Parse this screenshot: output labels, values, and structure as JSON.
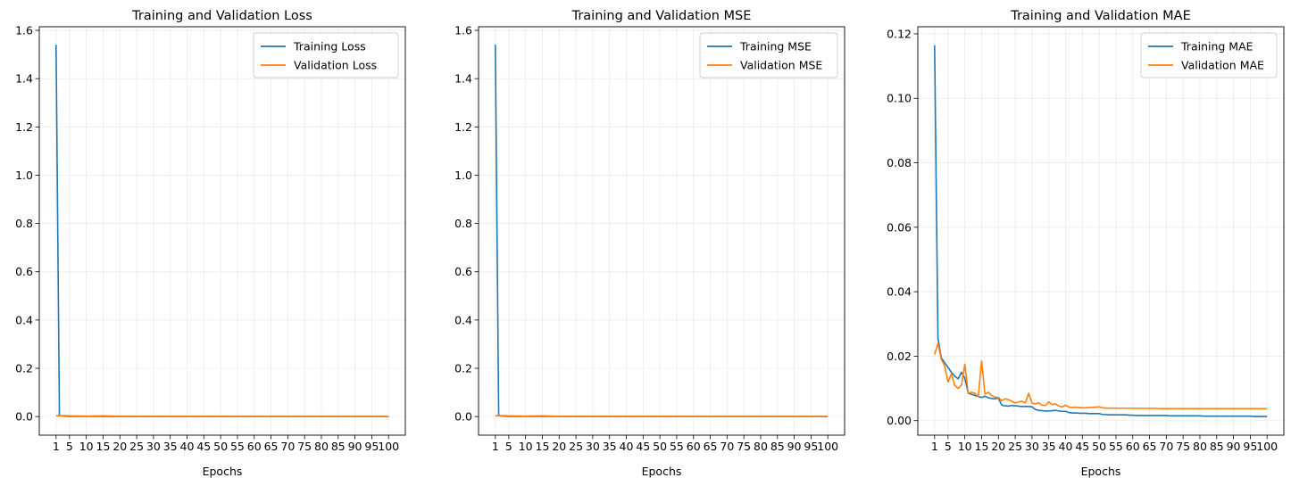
{
  "chart_data": [
    {
      "type": "line",
      "title": "Training and Validation Loss",
      "xlabel": "Epochs",
      "ylabel": "",
      "xlim": [
        -4,
        105
      ],
      "ylim": [
        -0.077,
        1.615
      ],
      "xticks": [
        1,
        5,
        10,
        15,
        20,
        25,
        30,
        35,
        40,
        45,
        50,
        55,
        60,
        65,
        70,
        75,
        80,
        85,
        90,
        95,
        100
      ],
      "xtick_labels": [
        "1",
        "5",
        "10",
        "15",
        "20",
        "25",
        "30",
        "35",
        "40",
        "45",
        "50",
        "55",
        "60",
        "65",
        "70",
        "75",
        "80",
        "85",
        "90",
        "95",
        "100"
      ],
      "yticks": [
        0.0,
        0.2,
        0.4,
        0.6,
        0.8,
        1.0,
        1.2,
        1.4,
        1.6
      ],
      "ytick_labels": [
        "0.0",
        "0.2",
        "0.4",
        "0.6",
        "0.8",
        "1.0",
        "1.2",
        "1.4",
        "1.6"
      ],
      "grid": true,
      "legend_position": "top-right",
      "series": [
        {
          "name": "Training Loss",
          "color": "#1f77b4",
          "x": [
            1,
            2,
            3,
            5,
            10,
            15,
            20,
            30,
            40,
            50,
            60,
            70,
            80,
            90,
            100
          ],
          "y": [
            1.54,
            0.004,
            0.002,
            0.001,
            0.0008,
            0.0006,
            0.0004,
            0.0003,
            0.0002,
            0.0002,
            0.0002,
            0.0002,
            0.0002,
            0.0002,
            0.0002
          ]
        },
        {
          "name": "Validation Loss",
          "color": "#ff7f0e",
          "x": [
            1,
            2,
            5,
            10,
            15,
            20,
            30,
            40,
            50,
            60,
            70,
            80,
            90,
            100
          ],
          "y": [
            0.003,
            0.004,
            0.003,
            0.002,
            0.003,
            0.001,
            0.001,
            0.0008,
            0.0007,
            0.0006,
            0.0006,
            0.0006,
            0.0006,
            0.0006
          ]
        }
      ]
    },
    {
      "type": "line",
      "title": "Training and Validation MSE",
      "xlabel": "Epochs",
      "ylabel": "",
      "xlim": [
        -4,
        105
      ],
      "ylim": [
        -0.077,
        1.615
      ],
      "xticks": [
        1,
        5,
        10,
        15,
        20,
        25,
        30,
        35,
        40,
        45,
        50,
        55,
        60,
        65,
        70,
        75,
        80,
        85,
        90,
        95,
        100
      ],
      "xtick_labels": [
        "1",
        "5",
        "10",
        "15",
        "20",
        "25",
        "30",
        "35",
        "40",
        "45",
        "50",
        "55",
        "60",
        "65",
        "70",
        "75",
        "80",
        "85",
        "90",
        "95",
        "100"
      ],
      "yticks": [
        0.0,
        0.2,
        0.4,
        0.6,
        0.8,
        1.0,
        1.2,
        1.4,
        1.6
      ],
      "ytick_labels": [
        "0.0",
        "0.2",
        "0.4",
        "0.6",
        "0.8",
        "1.0",
        "1.2",
        "1.4",
        "1.6"
      ],
      "grid": true,
      "legend_position": "top-right",
      "series": [
        {
          "name": "Training MSE",
          "color": "#1f77b4",
          "x": [
            1,
            2,
            3,
            5,
            10,
            15,
            20,
            30,
            40,
            50,
            60,
            70,
            80,
            90,
            100
          ],
          "y": [
            1.54,
            0.004,
            0.002,
            0.001,
            0.0008,
            0.0006,
            0.0004,
            0.0003,
            0.0002,
            0.0002,
            0.0002,
            0.0002,
            0.0002,
            0.0002,
            0.0002
          ]
        },
        {
          "name": "Validation MSE",
          "color": "#ff7f0e",
          "x": [
            1,
            2,
            5,
            10,
            15,
            20,
            30,
            40,
            50,
            60,
            70,
            80,
            90,
            100
          ],
          "y": [
            0.003,
            0.004,
            0.003,
            0.002,
            0.003,
            0.001,
            0.001,
            0.0008,
            0.0007,
            0.0006,
            0.0006,
            0.0006,
            0.0006,
            0.0006
          ]
        }
      ]
    },
    {
      "type": "line",
      "title": "Training and Validation MAE",
      "xlabel": "Epochs",
      "ylabel": "",
      "xlim": [
        -4,
        105
      ],
      "ylim": [
        -0.0045,
        0.1222
      ],
      "xticks": [
        1,
        5,
        10,
        15,
        20,
        25,
        30,
        35,
        40,
        45,
        50,
        55,
        60,
        65,
        70,
        75,
        80,
        85,
        90,
        95,
        100
      ],
      "xtick_labels": [
        "1",
        "5",
        "10",
        "15",
        "20",
        "25",
        "30",
        "35",
        "40",
        "45",
        "50",
        "55",
        "60",
        "65",
        "70",
        "75",
        "80",
        "85",
        "90",
        "95",
        "100"
      ],
      "yticks": [
        0.0,
        0.02,
        0.04,
        0.06,
        0.08,
        0.1,
        0.12
      ],
      "ytick_labels": [
        "0.00",
        "0.02",
        "0.04",
        "0.06",
        "0.08",
        "0.10",
        "0.12"
      ],
      "grid": true,
      "legend_position": "top-right",
      "series": [
        {
          "name": "Training MAE",
          "color": "#1f77b4",
          "x": [
            1,
            2,
            3,
            4,
            5,
            6,
            7,
            8,
            9,
            10,
            11,
            12,
            13,
            14,
            15,
            16,
            17,
            18,
            19,
            20,
            21,
            22,
            23,
            24,
            25,
            26,
            27,
            28,
            29,
            30,
            31,
            32,
            33,
            34,
            35,
            36,
            37,
            38,
            39,
            40,
            41,
            42,
            43,
            44,
            45,
            46,
            47,
            48,
            49,
            50,
            51,
            52,
            53,
            54,
            55,
            56,
            57,
            58,
            59,
            60,
            61,
            62,
            63,
            64,
            65,
            66,
            67,
            68,
            69,
            70,
            71,
            72,
            73,
            74,
            75,
            76,
            77,
            78,
            79,
            80,
            81,
            82,
            83,
            84,
            85,
            86,
            87,
            88,
            89,
            90,
            91,
            92,
            93,
            94,
            95,
            96,
            97,
            98,
            99,
            100
          ],
          "y": [
            0.1165,
            0.0255,
            0.0195,
            0.018,
            0.0165,
            0.015,
            0.0138,
            0.013,
            0.015,
            0.0132,
            0.0085,
            0.0082,
            0.0078,
            0.0075,
            0.0072,
            0.0076,
            0.0071,
            0.0069,
            0.0068,
            0.007,
            0.0048,
            0.0046,
            0.0045,
            0.0047,
            0.0046,
            0.0045,
            0.0044,
            0.0044,
            0.0044,
            0.0043,
            0.0035,
            0.0032,
            0.0031,
            0.003,
            0.003,
            0.0031,
            0.0032,
            0.003,
            0.0029,
            0.0029,
            0.0025,
            0.0024,
            0.0024,
            0.0023,
            0.0023,
            0.0023,
            0.0022,
            0.0022,
            0.0022,
            0.0022,
            0.0019,
            0.0019,
            0.0018,
            0.0018,
            0.0018,
            0.0018,
            0.0018,
            0.0018,
            0.0017,
            0.0017,
            0.0016,
            0.0016,
            0.0016,
            0.0016,
            0.0016,
            0.0016,
            0.0016,
            0.0016,
            0.0016,
            0.0016,
            0.0015,
            0.0015,
            0.0015,
            0.0015,
            0.0015,
            0.0015,
            0.0015,
            0.0015,
            0.0015,
            0.0015,
            0.0014,
            0.0014,
            0.0014,
            0.0014,
            0.0014,
            0.0014,
            0.0014,
            0.0014,
            0.0014,
            0.0014,
            0.0014,
            0.0014,
            0.0014,
            0.0014,
            0.0014,
            0.0013,
            0.0013,
            0.0013,
            0.0013,
            0.0013
          ]
        },
        {
          "name": "Validation MAE",
          "color": "#ff7f0e",
          "x": [
            1,
            2,
            3,
            4,
            5,
            6,
            7,
            8,
            9,
            10,
            11,
            12,
            13,
            14,
            15,
            16,
            17,
            18,
            19,
            20,
            21,
            22,
            23,
            24,
            25,
            26,
            27,
            28,
            29,
            30,
            31,
            32,
            33,
            34,
            35,
            36,
            37,
            38,
            39,
            40,
            41,
            42,
            43,
            44,
            45,
            46,
            47,
            48,
            49,
            50,
            51,
            52,
            53,
            54,
            55,
            56,
            57,
            58,
            59,
            60,
            61,
            62,
            63,
            64,
            65,
            66,
            67,
            68,
            69,
            70,
            71,
            72,
            73,
            74,
            75,
            76,
            77,
            78,
            79,
            80,
            81,
            82,
            83,
            84,
            85,
            86,
            87,
            88,
            89,
            90,
            91,
            92,
            93,
            94,
            95,
            96,
            97,
            98,
            99,
            100
          ],
          "y": [
            0.0205,
            0.024,
            0.019,
            0.017,
            0.012,
            0.0145,
            0.011,
            0.01,
            0.011,
            0.0175,
            0.0085,
            0.0088,
            0.0085,
            0.0075,
            0.0185,
            0.0082,
            0.0088,
            0.0078,
            0.0073,
            0.0072,
            0.0062,
            0.0068,
            0.0065,
            0.006,
            0.0055,
            0.0058,
            0.006,
            0.0055,
            0.0085,
            0.0055,
            0.0052,
            0.0055,
            0.0048,
            0.0047,
            0.0058,
            0.005,
            0.0052,
            0.0045,
            0.0043,
            0.0048,
            0.0042,
            0.0041,
            0.0042,
            0.0041,
            0.004,
            0.004,
            0.0041,
            0.0041,
            0.0042,
            0.0043,
            0.004,
            0.0039,
            0.0039,
            0.0039,
            0.0039,
            0.0038,
            0.0039,
            0.0038,
            0.0039,
            0.0038,
            0.0038,
            0.0038,
            0.0038,
            0.0038,
            0.0038,
            0.0038,
            0.0038,
            0.0037,
            0.0037,
            0.0037,
            0.0037,
            0.0037,
            0.0037,
            0.0037,
            0.0037,
            0.0037,
            0.0037,
            0.0037,
            0.0037,
            0.0037,
            0.0037,
            0.0037,
            0.0037,
            0.0037,
            0.0037,
            0.0037,
            0.0037,
            0.0037,
            0.0037,
            0.0037,
            0.0037,
            0.0037,
            0.0037,
            0.0037,
            0.0037,
            0.0037,
            0.0037,
            0.0037,
            0.0037,
            0.0037
          ]
        }
      ]
    }
  ]
}
